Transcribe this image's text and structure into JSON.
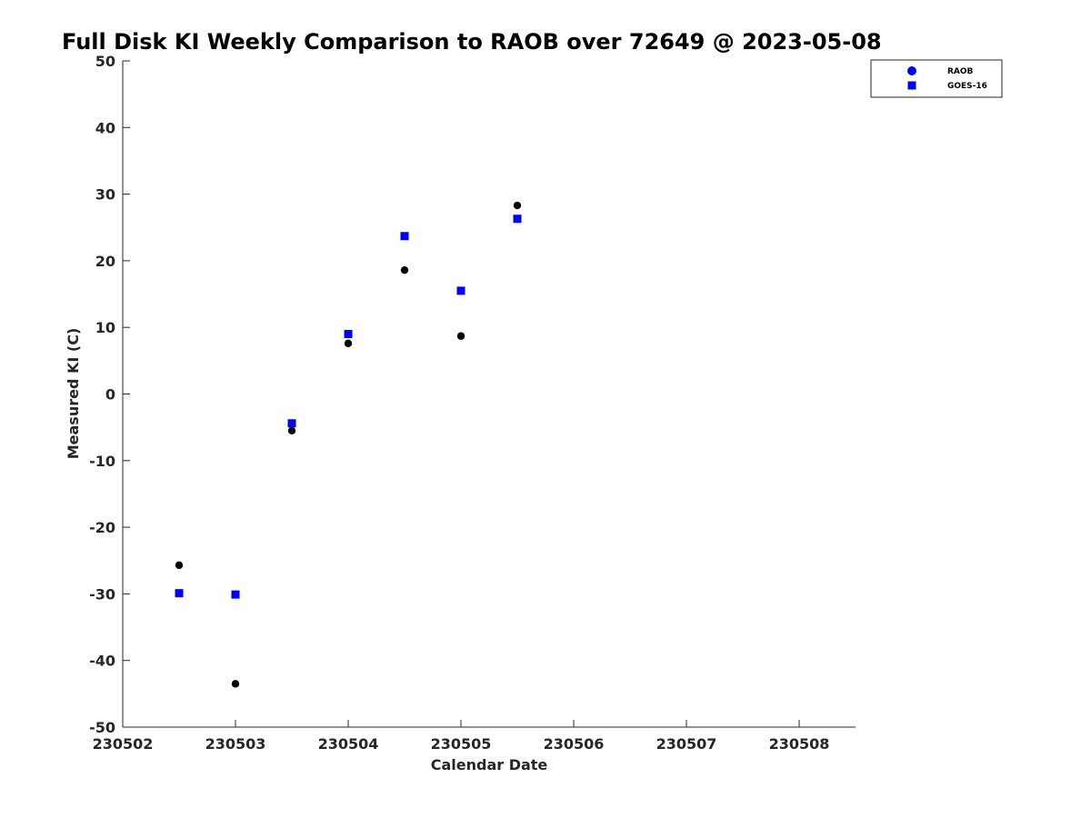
{
  "chart_data": {
    "type": "scatter",
    "title": "Full Disk KI Weekly Comparison to RAOB over 72649 @ 2023-05-08",
    "xlabel": "Calendar Date",
    "ylabel": "Measured KI (C)",
    "xlim": [
      0,
      6.5
    ],
    "ylim": [
      -50,
      50
    ],
    "x_ticks": [
      0,
      1,
      2,
      3,
      4,
      5,
      6
    ],
    "x_tick_labels": [
      "230502",
      "230503",
      "230504",
      "230505",
      "230506",
      "230507",
      "230508"
    ],
    "y_ticks": [
      -50,
      -40,
      -30,
      -20,
      -10,
      0,
      10,
      20,
      30,
      40,
      50
    ],
    "y_tick_labels": [
      "-50",
      "-40",
      "-30",
      "-20",
      "-10",
      "0",
      "10",
      "20",
      "30",
      "40",
      "50"
    ],
    "grid": false,
    "legend_position": "top-right",
    "series": [
      {
        "name": "RAOB",
        "marker": "circle",
        "legend_color": "#0000ff",
        "color": "#000000",
        "x": [
          0.5,
          1.0,
          1.5,
          2.0,
          2.5,
          3.0,
          3.5
        ],
        "y": [
          -25.7,
          -43.5,
          -5.5,
          7.6,
          18.6,
          8.7,
          28.3
        ]
      },
      {
        "name": "GOES-16",
        "marker": "square",
        "legend_color": "#0000ff",
        "color": "#0000ff",
        "x": [
          0.5,
          1.0,
          1.5,
          2.0,
          2.5,
          3.0,
          3.5
        ],
        "y": [
          -29.9,
          -30.1,
          -4.4,
          9.0,
          23.7,
          15.5,
          26.3
        ]
      }
    ]
  }
}
